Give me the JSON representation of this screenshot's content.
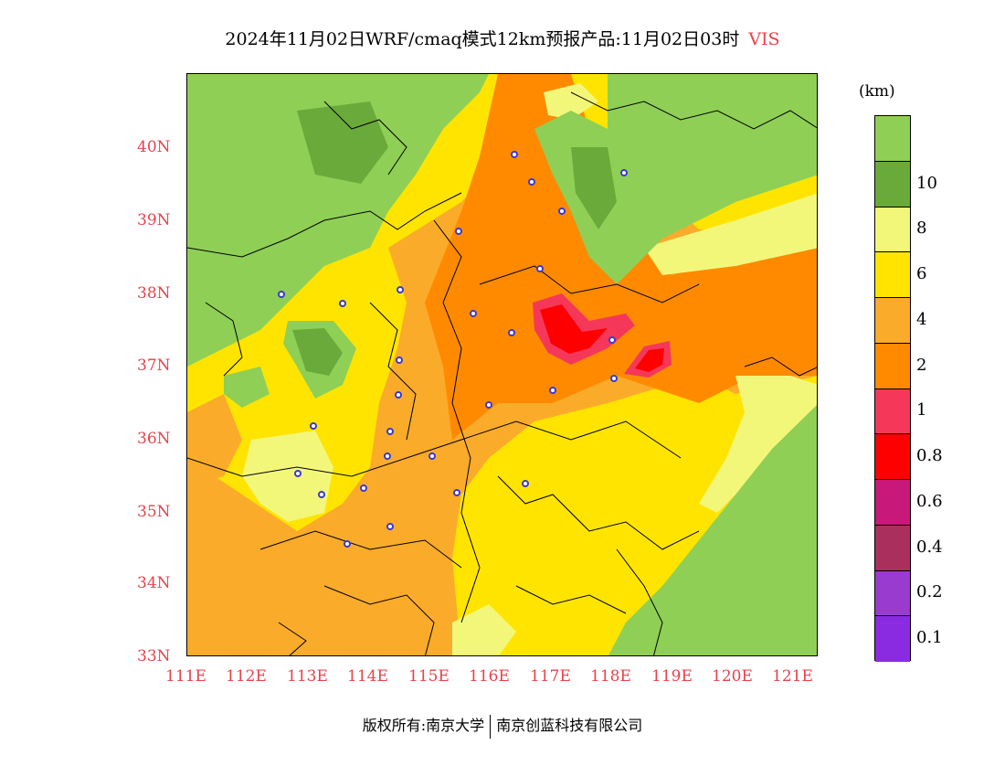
{
  "title": {
    "main": "2024年11月02日WRF/cmaq模式12km预报产品:11月02日03时",
    "variable": "VIS"
  },
  "axes": {
    "lat_labels": [
      "40N",
      "39N",
      "38N",
      "37N",
      "36N",
      "35N",
      "34N",
      "33N"
    ],
    "lon_labels": [
      "111E",
      "112E",
      "113E",
      "114E",
      "115E",
      "116E",
      "117E",
      "118E",
      "119E",
      "120E",
      "121E"
    ]
  },
  "legend": {
    "unit": "(km)",
    "levels": [
      {
        "label": "",
        "color": "#8fcf55"
      },
      {
        "label": "10",
        "color": "#6aaa3a"
      },
      {
        "label": "8",
        "color": "#f2f77a"
      },
      {
        "label": "6",
        "color": "#ffe400"
      },
      {
        "label": "4",
        "color": "#fbab2a"
      },
      {
        "label": "2",
        "color": "#ff8a00"
      },
      {
        "label": "1",
        "color": "#f5385a"
      },
      {
        "label": "0.8",
        "color": "#ff0000"
      },
      {
        "label": "0.6",
        "color": "#c8187a"
      },
      {
        "label": "0.4",
        "color": "#ab2f5c"
      },
      {
        "label": "0.2",
        "color": "#9a3bcf"
      },
      {
        "label": "0.1",
        "color": "#8a2be2"
      }
    ]
  },
  "footer": {
    "left": "版权所有:南京大学",
    "right": "南京创蓝科技有限公司"
  }
}
